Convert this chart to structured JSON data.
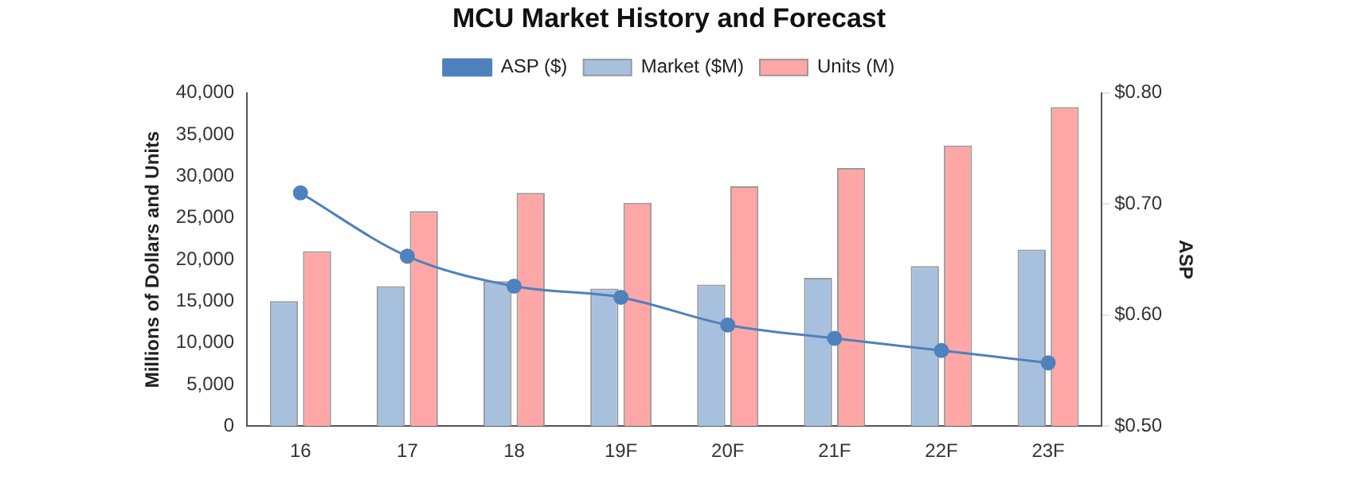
{
  "chart_data": {
    "type": "bar",
    "title": "MCU Market History and Forecast",
    "ylabel": "Millions of Dollars and Units",
    "y2label": "ASP",
    "categories": [
      "16",
      "17",
      "18",
      "19F",
      "20F",
      "21F",
      "22F",
      "23F"
    ],
    "series": [
      {
        "name": "Market ($M)",
        "color": "#a7c0de",
        "values": [
          15000,
          16800,
          17400,
          16500,
          17000,
          17800,
          19200,
          21200
        ]
      },
      {
        "name": "Units (M)",
        "color": "#ffa7a7",
        "values": [
          21000,
          25800,
          28000,
          26800,
          28800,
          31000,
          33700,
          38300
        ]
      },
      {
        "name": "ASP ($)",
        "type": "line",
        "axis": "y2",
        "color": "#4f81bd",
        "values": [
          0.71,
          0.653,
          0.626,
          0.616,
          0.591,
          0.579,
          0.568,
          0.557
        ]
      }
    ],
    "ylim": [
      0,
      40000
    ],
    "yticks": [
      {
        "value": 0,
        "label": "0"
      },
      {
        "value": 5000,
        "label": "5,000"
      },
      {
        "value": 10000,
        "label": "10,000"
      },
      {
        "value": 15000,
        "label": "15,000"
      },
      {
        "value": 20000,
        "label": "20,000"
      },
      {
        "value": 25000,
        "label": "25,000"
      },
      {
        "value": 30000,
        "label": "30,000"
      },
      {
        "value": 35000,
        "label": "35,000"
      },
      {
        "value": 40000,
        "label": "40,000"
      }
    ],
    "y2lim": [
      0.5,
      0.8
    ],
    "y2ticks": [
      {
        "value": 0.5,
        "label": "$0.50"
      },
      {
        "value": 0.6,
        "label": "$0.60"
      },
      {
        "value": 0.7,
        "label": "$0.70"
      },
      {
        "value": 0.8,
        "label": "$0.80"
      }
    ],
    "grid": false,
    "legend": "top",
    "marker": "circle",
    "line_style": "solid"
  }
}
